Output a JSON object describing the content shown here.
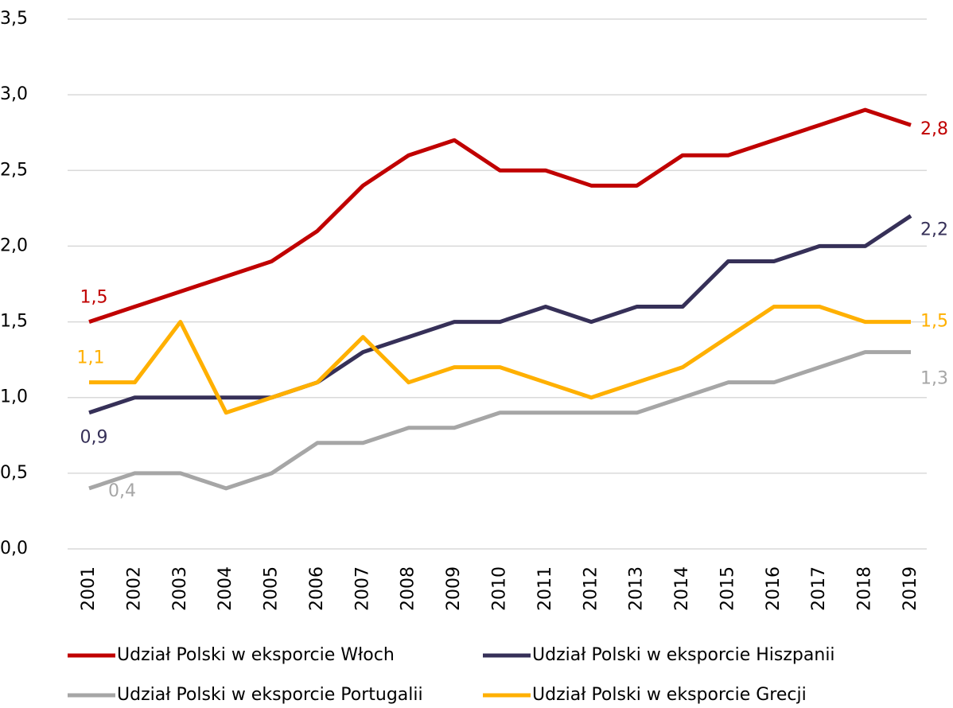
{
  "chart_data": {
    "type": "line",
    "categories": [
      "2001",
      "2002",
      "2003",
      "2004",
      "2005",
      "2006",
      "2007",
      "2008",
      "2009",
      "2010",
      "2011",
      "2012",
      "2013",
      "2014",
      "2015",
      "2016",
      "2017",
      "2018",
      "2019"
    ],
    "series": [
      {
        "name": "Udział Polski w eksporcie Włoch",
        "color": "#c00000",
        "values": [
          1.5,
          1.6,
          1.7,
          1.8,
          1.9,
          2.1,
          2.4,
          2.6,
          2.7,
          2.5,
          2.5,
          2.4,
          2.4,
          2.6,
          2.6,
          2.7,
          2.8,
          2.9,
          2.8
        ],
        "value_labels": [
          "1,5",
          null,
          null,
          null,
          null,
          null,
          null,
          null,
          null,
          null,
          null,
          null,
          null,
          null,
          null,
          null,
          null,
          null,
          "2,8"
        ]
      },
      {
        "name": "Udział Polski w eksporcie Hiszpanii",
        "color": "#363058",
        "values": [
          0.9,
          1.0,
          1.0,
          1.0,
          1.0,
          1.1,
          1.3,
          1.4,
          1.5,
          1.5,
          1.6,
          1.5,
          1.6,
          1.6,
          1.9,
          1.9,
          2.0,
          2.0,
          2.2
        ],
        "value_labels": [
          "0,9",
          null,
          null,
          null,
          null,
          null,
          null,
          null,
          null,
          null,
          null,
          null,
          null,
          null,
          null,
          null,
          null,
          null,
          "2,2"
        ]
      },
      {
        "name": "Udział Polski w eksporcie Portugalii",
        "color": "#a6a6a6",
        "values": [
          0.4,
          0.5,
          0.5,
          0.4,
          0.5,
          0.7,
          0.7,
          0.8,
          0.8,
          0.9,
          0.9,
          0.9,
          0.9,
          1.0,
          1.1,
          1.1,
          1.2,
          1.3,
          1.3
        ],
        "value_labels": [
          "0,4",
          null,
          null,
          null,
          null,
          null,
          null,
          null,
          null,
          null,
          null,
          null,
          null,
          null,
          null,
          null,
          null,
          null,
          "1,3"
        ]
      },
      {
        "name": "Udział Polski w eksporcie Grecji",
        "color": "#ffb000",
        "values": [
          1.1,
          1.1,
          1.5,
          0.9,
          1.0,
          1.1,
          1.4,
          1.1,
          1.2,
          1.2,
          1.1,
          1.0,
          1.1,
          1.2,
          1.4,
          1.6,
          1.6,
          1.5,
          1.5
        ],
        "value_labels": [
          "1,1",
          null,
          null,
          null,
          null,
          null,
          null,
          null,
          null,
          null,
          null,
          null,
          null,
          null,
          null,
          null,
          null,
          null,
          "1,5"
        ]
      }
    ],
    "ylim": [
      0,
      3.5
    ],
    "yticks": [
      {
        "value": 0,
        "label": "0,0"
      },
      {
        "value": 0.5,
        "label": "0,5"
      },
      {
        "value": 1,
        "label": "1,0"
      },
      {
        "value": 1.5,
        "label": "1,5"
      },
      {
        "value": 2,
        "label": "2,0"
      },
      {
        "value": 2.5,
        "label": "2,5"
      },
      {
        "value": 3,
        "label": "3,0"
      },
      {
        "value": 3.5,
        "label": "3,5"
      }
    ],
    "grid": true,
    "legend": "bottom"
  }
}
